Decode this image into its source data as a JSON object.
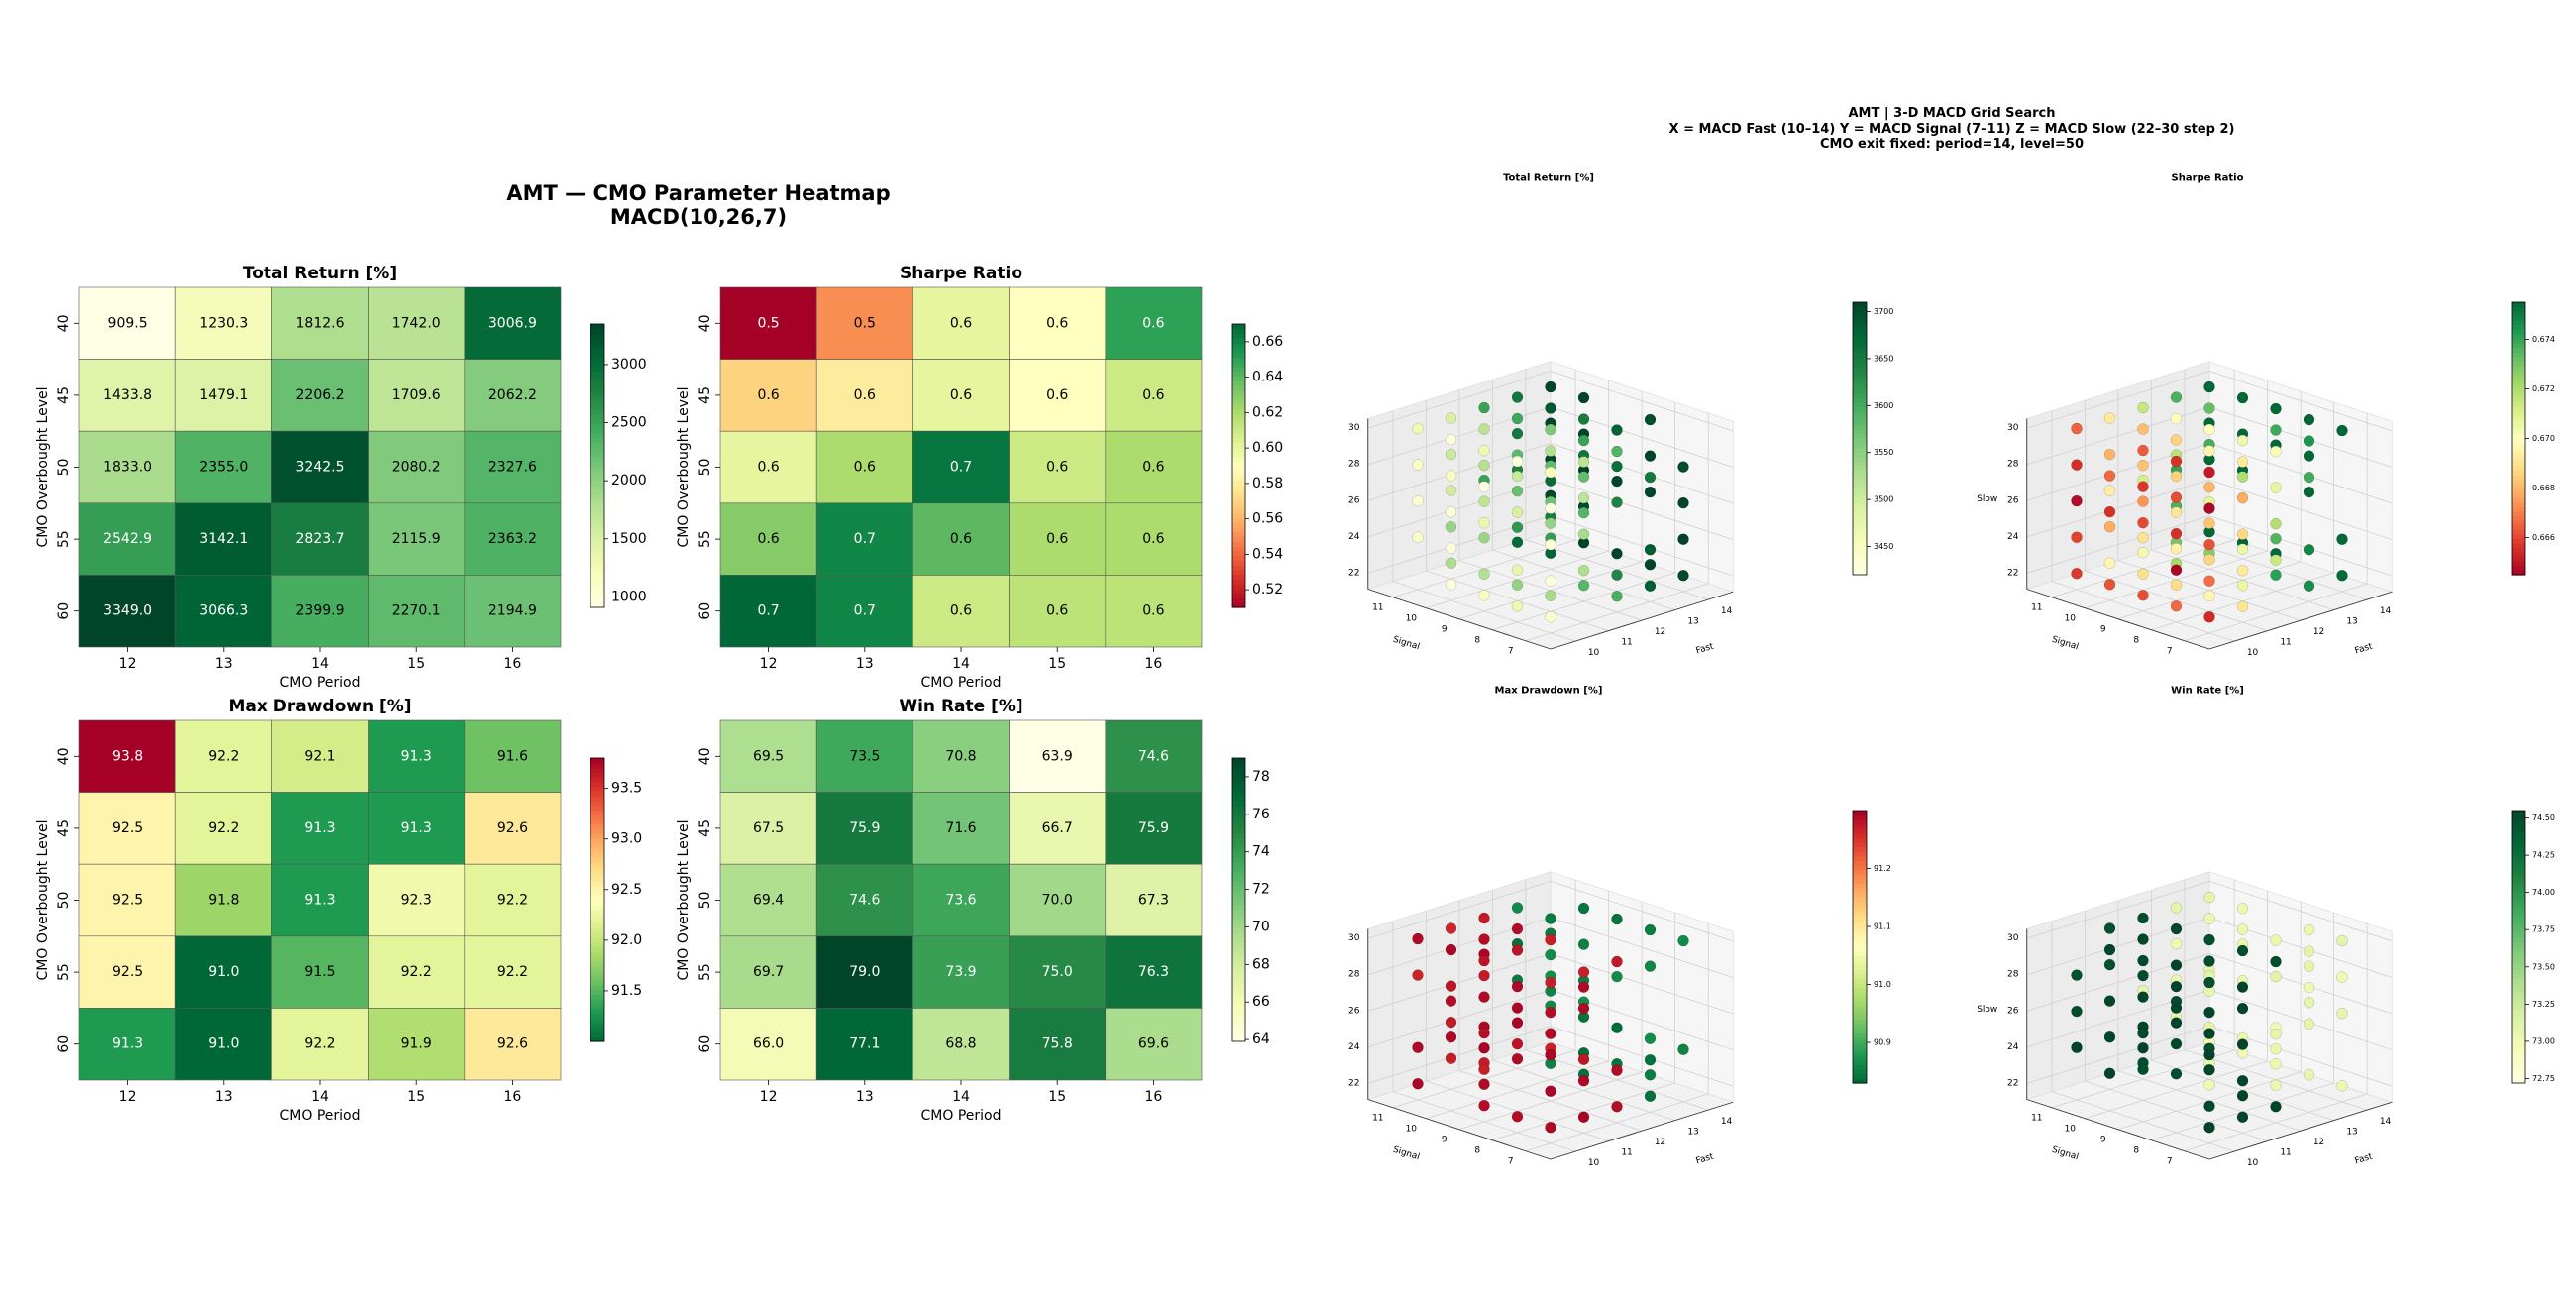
{
  "figure_left_title": [
    "AMT — CMO Parameter Heatmap",
    "MACD(10,26,7)"
  ],
  "figure_right_title": [
    "AMT  |  3-D MACD Grid Search",
    "X = MACD Fast (10–14)   Y = MACD Signal (7–11)   Z = MACD Slow (22–30 step 2)",
    "CMO exit fixed: period=14, level=50"
  ],
  "chart_data": [
    {
      "type": "heatmap",
      "title": "Total Return [%]",
      "xlabel": "CMO Period",
      "ylabel": "CMO Overbought Level",
      "x": [
        12,
        13,
        14,
        15,
        16
      ],
      "y": [
        40,
        45,
        50,
        55,
        60
      ],
      "values": [
        [
          909.5,
          1230.3,
          1812.6,
          1742.0,
          3006.9
        ],
        [
          1433.8,
          1479.1,
          2206.2,
          1709.6,
          2062.2
        ],
        [
          1833.0,
          2355.0,
          3242.5,
          2080.2,
          2327.6
        ],
        [
          2542.9,
          3142.1,
          2823.7,
          2115.9,
          2363.2
        ],
        [
          3349.0,
          3066.3,
          2399.9,
          2270.1,
          2194.9
        ]
      ],
      "colormap": "YlGn",
      "vmin": 909.5,
      "vmax": 3349.0,
      "colorbar_ticks": [
        1000,
        1500,
        2000,
        2500,
        3000
      ],
      "tick_decimals": 0
    },
    {
      "type": "heatmap",
      "title": "Sharpe Ratio",
      "xlabel": "CMO Period",
      "ylabel": "CMO Overbought Level",
      "x": [
        12,
        13,
        14,
        15,
        16
      ],
      "y": [
        40,
        45,
        50,
        55,
        60
      ],
      "values": [
        [
          0.51,
          0.55,
          0.6,
          0.59,
          0.65
        ],
        [
          0.57,
          0.58,
          0.6,
          0.59,
          0.61
        ],
        [
          0.6,
          0.62,
          0.665,
          0.61,
          0.62
        ],
        [
          0.63,
          0.66,
          0.64,
          0.62,
          0.62
        ],
        [
          0.67,
          0.66,
          0.61,
          0.615,
          0.615
        ]
      ],
      "labels": [
        [
          "0.5",
          "0.5",
          "0.6",
          "0.6",
          "0.6"
        ],
        [
          "0.6",
          "0.6",
          "0.6",
          "0.6",
          "0.6"
        ],
        [
          "0.6",
          "0.6",
          "0.7",
          "0.6",
          "0.6"
        ],
        [
          "0.6",
          "0.7",
          "0.6",
          "0.6",
          "0.6"
        ],
        [
          "0.7",
          "0.7",
          "0.6",
          "0.6",
          "0.6"
        ]
      ],
      "colormap": "RdYlGn",
      "vmin": 0.51,
      "vmax": 0.67,
      "colorbar_ticks": [
        0.52,
        0.54,
        0.56,
        0.58,
        0.6,
        0.62,
        0.64,
        0.66
      ],
      "tick_decimals": 2
    },
    {
      "type": "heatmap",
      "title": "Max Drawdown [%]",
      "xlabel": "CMO Period",
      "ylabel": "CMO Overbought Level",
      "x": [
        12,
        13,
        14,
        15,
        16
      ],
      "y": [
        40,
        45,
        50,
        55,
        60
      ],
      "values": [
        [
          93.8,
          92.2,
          92.1,
          91.3,
          91.6
        ],
        [
          92.5,
          92.2,
          91.3,
          91.3,
          92.6
        ],
        [
          92.5,
          91.8,
          91.3,
          92.3,
          92.2
        ],
        [
          92.5,
          91.0,
          91.5,
          92.2,
          92.2
        ],
        [
          91.3,
          91.0,
          92.2,
          91.9,
          92.6
        ]
      ],
      "colormap": "RdYlGn_r",
      "vmin": 91.0,
      "vmax": 93.8,
      "colorbar_ticks": [
        91.5,
        92.0,
        92.5,
        93.0,
        93.5
      ],
      "tick_decimals": 1
    },
    {
      "type": "heatmap",
      "title": "Win Rate [%]",
      "xlabel": "CMO Period",
      "ylabel": "CMO Overbought Level",
      "x": [
        12,
        13,
        14,
        15,
        16
      ],
      "y": [
        40,
        45,
        50,
        55,
        60
      ],
      "values": [
        [
          69.5,
          73.5,
          70.8,
          63.9,
          74.6
        ],
        [
          67.5,
          75.9,
          71.6,
          66.7,
          75.9
        ],
        [
          69.4,
          74.6,
          73.6,
          70.0,
          67.3
        ],
        [
          69.7,
          79.0,
          73.9,
          75.0,
          76.3
        ],
        [
          66.0,
          77.1,
          68.8,
          75.8,
          69.6
        ]
      ],
      "colormap": "YlGn",
      "vmin": 63.9,
      "vmax": 79.0,
      "colorbar_ticks": [
        64,
        66,
        68,
        70,
        72,
        74,
        76,
        78
      ],
      "tick_decimals": 0
    },
    {
      "type": "scatter",
      "subtype": "3d",
      "title": "Total Return [%]",
      "xlabel": "Fast",
      "ylabel": "Signal",
      "zlabel": "",
      "x_ticks": [
        10,
        11,
        12,
        13,
        14
      ],
      "y_ticks": [
        7,
        8,
        9,
        10,
        11
      ],
      "z_ticks": [
        22,
        24,
        26,
        28,
        30
      ],
      "colormap": "YlGn",
      "vmin": 3420,
      "vmax": 3710,
      "colorbar_ticks": [
        3450,
        3500,
        3550,
        3600,
        3650,
        3700
      ],
      "tick_decimals": 0,
      "pattern": "fast_high",
      "base": 3420,
      "fast_gain": 70,
      "noise": 60
    },
    {
      "type": "scatter",
      "subtype": "3d",
      "title": "Sharpe Ratio",
      "xlabel": "Fast",
      "ylabel": "Signal",
      "zlabel": "Slow",
      "x_ticks": [
        10,
        11,
        12,
        13,
        14
      ],
      "y_ticks": [
        7,
        8,
        9,
        10,
        11
      ],
      "z_ticks": [
        22,
        24,
        26,
        28,
        30
      ],
      "colormap": "RdYlGn",
      "vmin": 0.6645,
      "vmax": 0.6755,
      "colorbar_ticks": [
        0.666,
        0.668,
        0.67,
        0.672,
        0.674
      ],
      "tick_decimals": 3,
      "pattern": "fast_high",
      "base": 0.6645,
      "fast_gain": 0.0027,
      "noise": 0.0025
    },
    {
      "type": "scatter",
      "subtype": "3d",
      "title": "Max Drawdown [%]",
      "xlabel": "Fast",
      "ylabel": "Signal",
      "zlabel": "",
      "x_ticks": [
        10,
        11,
        12,
        13,
        14
      ],
      "y_ticks": [
        7,
        8,
        9,
        10,
        11
      ],
      "z_ticks": [
        22,
        24,
        26,
        28,
        30
      ],
      "colormap": "RdYlGn_r",
      "vmin": 90.83,
      "vmax": 91.3,
      "colorbar_ticks": [
        90.9,
        91.0,
        91.1,
        91.2
      ],
      "tick_decimals": 1,
      "pattern": "fast_split",
      "low": 90.85,
      "high": 91.28
    },
    {
      "type": "scatter",
      "subtype": "3d",
      "title": "Win Rate [%]",
      "xlabel": "Fast",
      "ylabel": "Signal",
      "zlabel": "Slow",
      "x_ticks": [
        10,
        11,
        12,
        13,
        14
      ],
      "y_ticks": [
        7,
        8,
        9,
        10,
        11
      ],
      "z_ticks": [
        22,
        24,
        26,
        28,
        30
      ],
      "colormap": "YlGn",
      "vmin": 72.72,
      "vmax": 74.55,
      "colorbar_ticks": [
        72.75,
        73.0,
        73.25,
        73.5,
        73.75,
        74.0,
        74.25,
        74.5
      ],
      "tick_decimals": 2,
      "pattern": "fast_split",
      "low": 73.05,
      "high": 74.52
    }
  ]
}
